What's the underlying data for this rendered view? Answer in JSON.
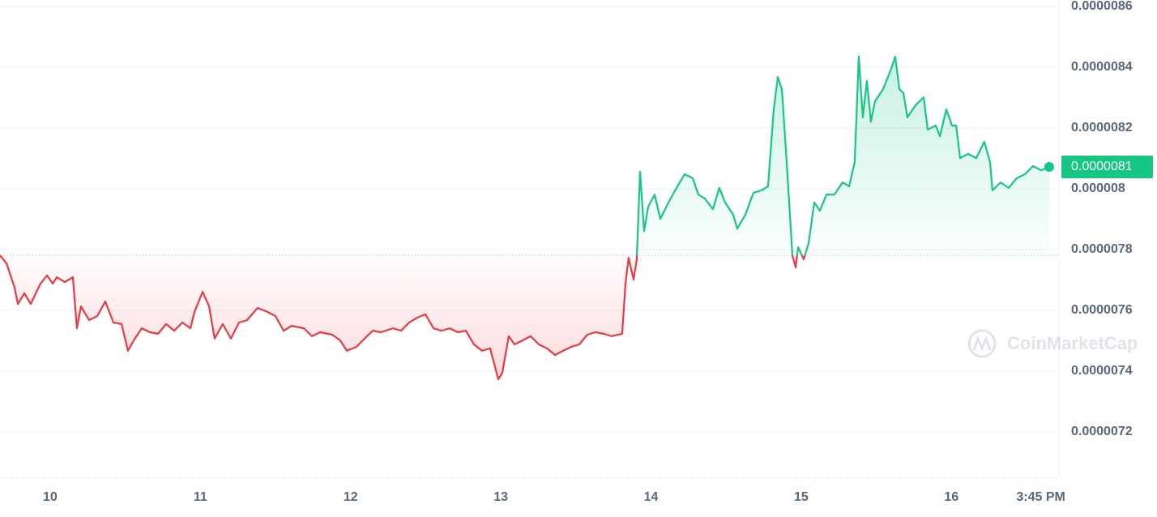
{
  "chart_data": {
    "type": "line",
    "x": [
      9.666,
      9.709,
      9.763,
      9.785,
      9.828,
      9.871,
      9.909,
      9.936,
      9.979,
      10.017,
      10.044,
      10.097,
      10.151,
      10.178,
      10.205,
      10.259,
      10.313,
      10.367,
      10.421,
      10.475,
      10.518,
      10.556,
      10.61,
      10.664,
      10.718,
      10.772,
      10.826,
      10.88,
      10.934,
      10.961,
      11.015,
      11.058,
      11.095,
      11.149,
      11.203,
      11.257,
      11.311,
      11.381,
      11.446,
      11.5,
      11.554,
      11.608,
      11.689,
      11.743,
      11.797,
      11.877,
      11.931,
      11.975,
      12.039,
      12.093,
      12.147,
      12.201,
      12.282,
      12.336,
      12.39,
      12.444,
      12.498,
      12.552,
      12.606,
      12.66,
      12.714,
      12.767,
      12.821,
      12.875,
      12.929,
      12.983,
      13.01,
      13.053,
      13.091,
      13.145,
      13.199,
      13.253,
      13.307,
      13.361,
      13.415,
      13.469,
      13.523,
      13.576,
      13.63,
      13.684,
      13.738,
      13.808,
      13.83,
      13.851,
      13.884,
      13.905,
      13.927,
      13.954,
      13.981,
      14.024,
      14.062,
      14.116,
      14.17,
      14.224,
      14.278,
      14.315,
      14.358,
      14.412,
      14.455,
      14.493,
      14.547,
      14.574,
      14.628,
      14.682,
      14.736,
      14.779,
      14.817,
      14.844,
      14.871,
      14.898,
      14.925,
      14.941,
      14.963,
      14.979,
      15.017,
      15.049,
      15.087,
      15.124,
      15.168,
      15.221,
      15.275,
      15.319,
      15.356,
      15.383,
      15.41,
      15.437,
      15.464,
      15.491,
      15.545,
      15.599,
      15.626,
      15.653,
      15.68,
      15.707,
      15.761,
      15.815,
      15.842,
      15.896,
      15.923,
      15.966,
      16.004,
      16.031,
      16.058,
      16.111,
      16.165,
      16.219,
      16.257,
      16.273,
      16.327,
      16.381,
      16.435,
      16.489,
      16.543,
      16.597,
      16.651
    ],
    "series": [
      {
        "values": [
          7.781e-06,
          7.755e-06,
          7.675e-06,
          7.621e-06,
          7.656e-06,
          7.621e-06,
          7.661e-06,
          7.688e-06,
          7.715e-06,
          7.688e-06,
          7.709e-06,
          7.693e-06,
          7.709e-06,
          7.541e-06,
          7.613e-06,
          7.568e-06,
          7.581e-06,
          7.629e-06,
          7.56e-06,
          7.555e-06,
          7.467e-06,
          7.501e-06,
          7.541e-06,
          7.528e-06,
          7.523e-06,
          7.555e-06,
          7.533e-06,
          7.56e-06,
          7.541e-06,
          7.595e-06,
          7.661e-06,
          7.613e-06,
          7.507e-06,
          7.555e-06,
          7.507e-06,
          7.56e-06,
          7.568e-06,
          7.608e-06,
          7.595e-06,
          7.581e-06,
          7.533e-06,
          7.549e-06,
          7.541e-06,
          7.515e-06,
          7.528e-06,
          7.52e-06,
          7.501e-06,
          7.467e-06,
          7.48e-06,
          7.507e-06,
          7.533e-06,
          7.528e-06,
          7.541e-06,
          7.533e-06,
          7.56e-06,
          7.576e-06,
          7.587e-06,
          7.541e-06,
          7.533e-06,
          7.541e-06,
          7.528e-06,
          7.533e-06,
          7.488e-06,
          7.467e-06,
          7.475e-06,
          7.373e-06,
          7.395e-06,
          7.515e-06,
          7.488e-06,
          7.501e-06,
          7.515e-06,
          7.488e-06,
          7.475e-06,
          7.453e-06,
          7.467e-06,
          7.48e-06,
          7.488e-06,
          7.52e-06,
          7.528e-06,
          7.523e-06,
          7.515e-06,
          7.523e-06,
          7.688e-06,
          7.773e-06,
          7.701e-06,
          7.768e-06,
          8.056e-06,
          7.861e-06,
          7.941e-06,
          7.981e-06,
          7.901e-06,
          7.955e-06,
          8.003e-06,
          8.048e-06,
          8.035e-06,
          7.981e-06,
          7.968e-06,
          7.933e-06,
          8.003e-06,
          7.955e-06,
          7.915e-06,
          7.869e-06,
          7.915e-06,
          7.987e-06,
          7.995e-06,
          8.008e-06,
          8.261e-06,
          8.368e-06,
          8.328e-06,
          8.128e-06,
          7.915e-06,
          7.781e-06,
          7.741e-06,
          7.808e-06,
          7.768e-06,
          7.821e-06,
          7.955e-06,
          7.928e-06,
          7.981e-06,
          7.981e-06,
          8.021e-06,
          8.008e-06,
          8.088e-06,
          8.435e-06,
          8.235e-06,
          8.355e-06,
          8.221e-06,
          8.288e-06,
          8.328e-06,
          8.395e-06,
          8.435e-06,
          8.328e-06,
          8.315e-06,
          8.235e-06,
          8.275e-06,
          8.301e-06,
          8.195e-06,
          8.208e-06,
          8.173e-06,
          8.261e-06,
          8.208e-06,
          8.208e-06,
          8.101e-06,
          8.115e-06,
          8.101e-06,
          8.155e-06,
          8.088e-06,
          7.995e-06,
          8.021e-06,
          8.003e-06,
          8.035e-06,
          8.048e-06,
          8.075e-06,
          8.061e-06,
          8.072e-06
        ]
      }
    ],
    "baseline": 7.781e-06,
    "up_color": "#16c784",
    "down_color": "#ea3943",
    "last_label": "0.0000081",
    "xlim": [
      9.666,
      16.705
    ],
    "xticks": [
      10,
      11,
      12,
      13,
      14,
      15,
      16,
      {
        "value": 16.595,
        "label": "3:45 PM"
      }
    ],
    "ylim": [
      7.048e-06,
      8.6213e-06
    ],
    "yticks": [
      7.2e-06,
      7.4e-06,
      7.6e-06,
      7.8e-06,
      8e-06,
      8.2e-06,
      8.4e-06,
      8.6e-06
    ],
    "grid": true,
    "watermark": "CoinMarketCap"
  }
}
